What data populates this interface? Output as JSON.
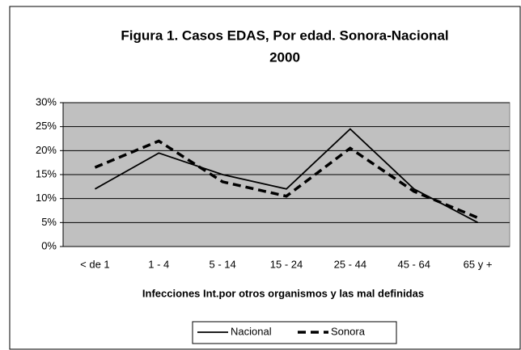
{
  "chart_data": {
    "type": "line",
    "title": "Figura 1. Casos EDAS, Por edad. Sonora-Nacional",
    "subtitle": "2000",
    "x_label": "Infecciones Int.por otros organismos y las mal definidas",
    "categories": [
      "< de 1",
      "1 - 4",
      "5 - 14",
      "15 - 24",
      "25 - 44",
      "45 - 64",
      "65 y +"
    ],
    "series": [
      {
        "name": "Nacional",
        "color": "#000000",
        "line_style": "solid",
        "values": [
          12,
          19.5,
          15,
          12,
          24.5,
          12,
          5
        ]
      },
      {
        "name": "Sonora",
        "color": "#000000",
        "line_style": "dashed",
        "values": [
          16.5,
          22,
          13.5,
          10.5,
          20.5,
          11.5,
          6
        ]
      }
    ],
    "ylim": [
      0,
      30
    ],
    "yticks": [
      {
        "value": 0,
        "label": "0%"
      },
      {
        "value": 5,
        "label": "5%"
      },
      {
        "value": 10,
        "label": "10%"
      },
      {
        "value": 15,
        "label": "15%"
      },
      {
        "value": 20,
        "label": "20%"
      },
      {
        "value": 25,
        "label": "25%"
      },
      {
        "value": 30,
        "label": "30%"
      }
    ],
    "grid": true,
    "legend": "bottom"
  }
}
